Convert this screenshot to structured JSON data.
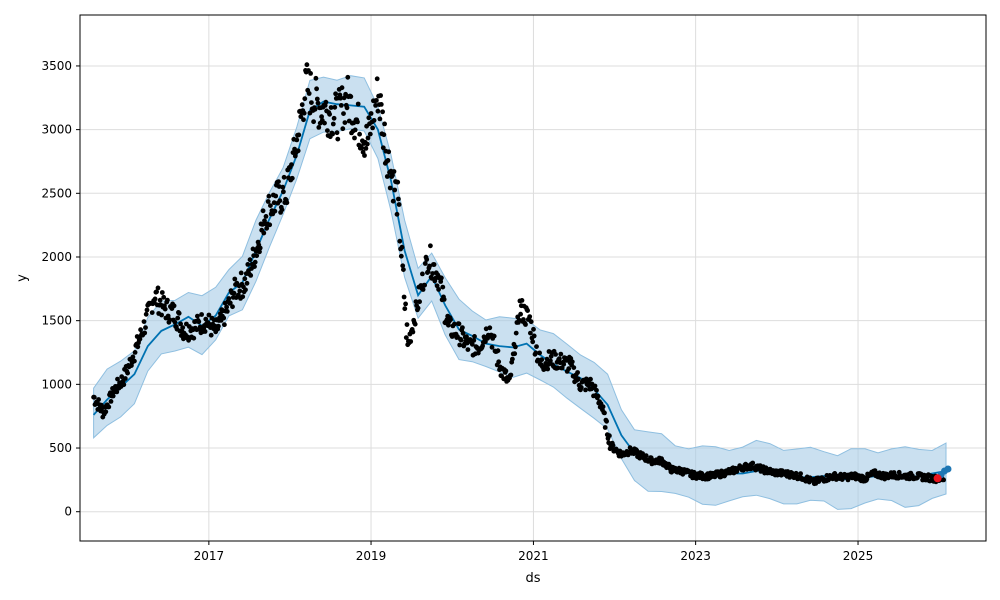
{
  "chart_data": {
    "type": "line",
    "title": "",
    "xlabel": "ds",
    "ylabel": "y",
    "xlim": [
      "2015-06-01",
      "2026-07-31"
    ],
    "ylim": [
      -230,
      3900
    ],
    "x_ticks": [
      "2017",
      "2019",
      "2021",
      "2023",
      "2025"
    ],
    "y_ticks": [
      0,
      500,
      1000,
      1500,
      2000,
      2500,
      3000,
      3500
    ],
    "grid": true,
    "legend": "none",
    "colors": {
      "observed": "#000000",
      "forecast": "#0072B2",
      "interval": "#a6cce6",
      "last_point": "#e8141e",
      "forecast_end": "#1f77b4"
    },
    "forecast": {
      "dates": [
        "2015-08-01",
        "2015-10-01",
        "2015-12-01",
        "2016-02-01",
        "2016-04-01",
        "2016-06-01",
        "2016-08-01",
        "2016-10-01",
        "2016-12-01",
        "2017-02-01",
        "2017-04-01",
        "2017-06-01",
        "2017-08-01",
        "2017-10-01",
        "2017-12-01",
        "2018-02-01",
        "2018-04-01",
        "2018-06-01",
        "2018-08-01",
        "2018-10-01",
        "2018-12-01",
        "2019-02-01",
        "2019-04-01",
        "2019-06-01",
        "2019-08-01",
        "2019-10-01",
        "2019-12-01",
        "2020-02-01",
        "2020-04-01",
        "2020-06-01",
        "2020-08-01",
        "2020-10-01",
        "2020-12-01",
        "2021-02-01",
        "2021-04-01",
        "2021-06-01",
        "2021-08-01",
        "2021-10-01",
        "2021-12-01",
        "2022-02-01",
        "2022-04-01",
        "2022-06-01",
        "2022-08-01",
        "2022-10-01",
        "2022-12-01",
        "2023-02-01",
        "2023-04-01",
        "2023-06-01",
        "2023-08-01",
        "2023-10-01",
        "2023-12-01",
        "2024-02-01",
        "2024-04-01",
        "2024-06-01",
        "2024-08-01",
        "2024-10-01",
        "2024-12-01",
        "2025-02-01",
        "2025-04-01",
        "2025-06-01",
        "2025-08-01",
        "2025-10-01",
        "2025-12-01",
        "2026-02-01"
      ],
      "yhat": [
        760,
        880,
        980,
        1080,
        1300,
        1420,
        1470,
        1530,
        1460,
        1540,
        1720,
        1800,
        2050,
        2300,
        2520,
        2800,
        3150,
        3220,
        3200,
        3190,
        3180,
        3000,
        2600,
        2050,
        1700,
        1850,
        1620,
        1430,
        1380,
        1320,
        1300,
        1290,
        1320,
        1230,
        1160,
        1100,
        1050,
        960,
        840,
        600,
        460,
        400,
        380,
        330,
        300,
        280,
        290,
        300,
        300,
        320,
        330,
        300,
        270,
        270,
        280,
        250,
        260,
        270,
        280,
        290,
        270,
        280,
        300,
        320
      ],
      "band_half_width": 210
    },
    "observed": {
      "dates": [
        "2015-08-01",
        "2015-09-15",
        "2015-11-01",
        "2015-12-15",
        "2016-02-01",
        "2016-03-15",
        "2016-05-01",
        "2016-06-15",
        "2016-08-01",
        "2016-09-15",
        "2016-11-01",
        "2016-12-15",
        "2017-02-01",
        "2017-03-15",
        "2017-05-01",
        "2017-06-15",
        "2017-08-01",
        "2017-09-15",
        "2017-11-01",
        "2017-12-15",
        "2018-02-01",
        "2018-03-15",
        "2018-05-01",
        "2018-06-15",
        "2018-08-01",
        "2018-09-15",
        "2018-11-01",
        "2018-12-15",
        "2019-02-01",
        "2019-03-15",
        "2019-05-01",
        "2019-06-15",
        "2019-08-01",
        "2019-09-15",
        "2019-11-01",
        "2019-12-15",
        "2020-02-01",
        "2020-03-15",
        "2020-05-01",
        "2020-06-15",
        "2020-08-01",
        "2020-09-15",
        "2020-11-01",
        "2020-12-15",
        "2021-02-01",
        "2021-03-15",
        "2021-05-01",
        "2021-06-15",
        "2021-08-01",
        "2021-09-15",
        "2021-11-01",
        "2021-12-15",
        "2022-02-01",
        "2022-03-15",
        "2022-05-01",
        "2022-06-15",
        "2022-08-01",
        "2022-09-15",
        "2022-11-01",
        "2022-12-15",
        "2023-02-01",
        "2023-03-15",
        "2023-05-01",
        "2023-06-15",
        "2023-08-01",
        "2023-09-15",
        "2023-11-01",
        "2023-12-15",
        "2024-02-01",
        "2024-03-15",
        "2024-05-01",
        "2024-06-15",
        "2024-08-01",
        "2024-09-15",
        "2024-11-01",
        "2024-12-15",
        "2025-02-01",
        "2025-03-15",
        "2025-05-01",
        "2025-06-15",
        "2025-08-01",
        "2025-09-15",
        "2025-11-01",
        "2025-12-15"
      ],
      "y": [
        900,
        780,
        950,
        1050,
        1250,
        1450,
        1700,
        1600,
        1550,
        1420,
        1450,
        1500,
        1420,
        1550,
        1750,
        1800,
        2050,
        2350,
        2450,
        2500,
        2900,
        3350,
        3200,
        3150,
        3100,
        3250,
        3050,
        2900,
        3300,
        2800,
        2450,
        1300,
        1650,
        2000,
        1850,
        1450,
        1400,
        1300,
        1300,
        1450,
        1150,
        1000,
        1600,
        1500,
        1150,
        1200,
        1180,
        1150,
        1000,
        1000,
        850,
        520,
        450,
        480,
        440,
        400,
        400,
        330,
        320,
        290,
        280,
        280,
        300,
        320,
        350,
        360,
        330,
        310,
        300,
        290,
        270,
        230,
        260,
        280,
        270,
        280,
        260,
        300,
        280,
        290,
        280,
        280,
        270,
        260
      ]
    },
    "last_point": {
      "date": "2025-12-25",
      "y": 262
    },
    "forecast_end": {
      "dates": [
        "2026-01-10",
        "2026-01-25",
        "2026-02-10"
      ],
      "y": [
        290,
        320,
        335
      ]
    }
  }
}
